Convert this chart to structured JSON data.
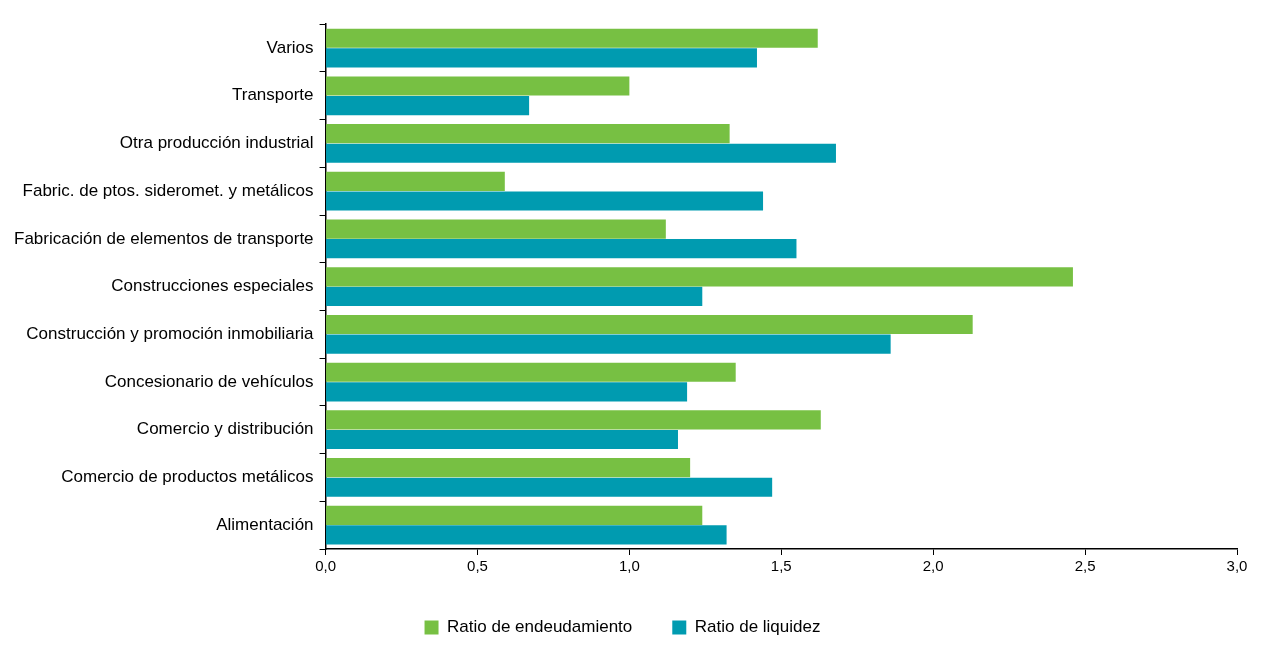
{
  "chart_data": {
    "type": "bar",
    "orientation": "horizontal",
    "categories": [
      "Varios",
      "Transporte",
      "Otra producción industrial",
      "Fabric. de ptos. sideromet. y metálicos",
      "Fabricación de elementos de transporte",
      "Construcciones especiales",
      "Construcción y promoción inmobiliaria",
      "Concesionario de vehículos",
      "Comercio y distribución",
      "Comercio de productos metálicos",
      "Alimentación"
    ],
    "series": [
      {
        "name": "Ratio de endeudamiento",
        "color": "#77c043",
        "values": [
          1.62,
          1.0,
          1.33,
          0.59,
          1.12,
          2.46,
          2.13,
          1.35,
          1.63,
          1.2,
          1.24
        ]
      },
      {
        "name": "Ratio de liquidez",
        "color": "#009bb0",
        "values": [
          1.42,
          0.67,
          1.68,
          1.44,
          1.55,
          1.24,
          1.86,
          1.19,
          1.16,
          1.47,
          1.32
        ]
      }
    ],
    "xlim": [
      0,
      3
    ],
    "xticks": [
      {
        "value": 0,
        "label": "0,0"
      },
      {
        "value": 0.5,
        "label": "0,5"
      },
      {
        "value": 1,
        "label": "1,0"
      },
      {
        "value": 1.5,
        "label": "1,5"
      },
      {
        "value": 2,
        "label": "2,0"
      },
      {
        "value": 2.5,
        "label": "2,5"
      },
      {
        "value": 3,
        "label": "3,0"
      }
    ],
    "grid": false,
    "legend": "bottom"
  }
}
